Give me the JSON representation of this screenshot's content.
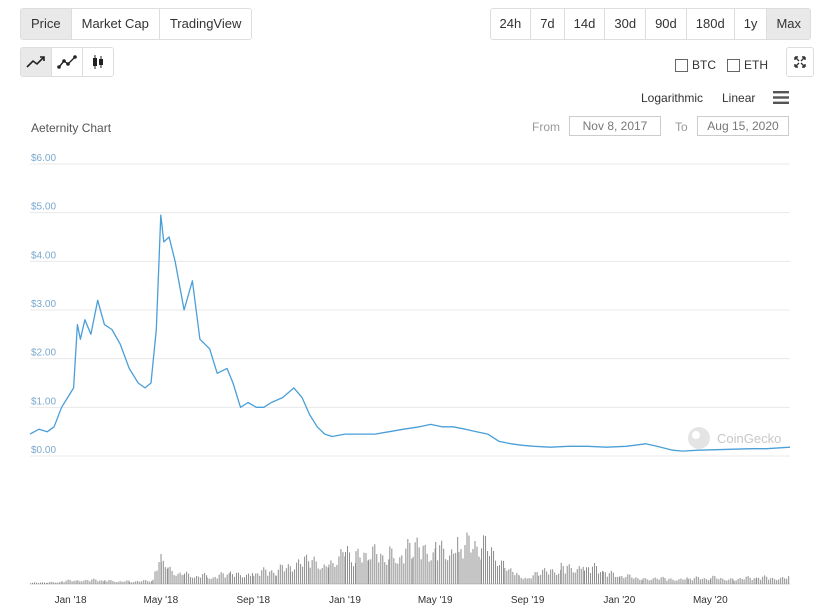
{
  "tabs": [
    "Price",
    "Market Cap",
    "TradingView"
  ],
  "ranges": [
    "24h",
    "7d",
    "14d",
    "30d",
    "90d",
    "180d",
    "1y",
    "Max"
  ],
  "compare": {
    "btc": "BTC",
    "eth": "ETH"
  },
  "scale": {
    "log": "Logarithmic",
    "linear": "Linear"
  },
  "date_range": {
    "from_label": "From",
    "from_value": "Nov 8, 2017",
    "to_label": "To",
    "to_value": "Aug 15, 2020"
  },
  "watermark": "CoinGecko",
  "colors": {
    "line": "#4a9fd8",
    "volume": "#8c8c8c",
    "grid": "#e8e8e8",
    "tick_y": "#7aa9cf",
    "tick_x": "#333333"
  },
  "chart_data": {
    "type": "line",
    "title": "Aeternity Chart",
    "x_unit": "date",
    "ylim": [
      0,
      6
    ],
    "y_ticks": [
      "$0.00",
      "$1.00",
      "$2.00",
      "$3.00",
      "$4.00",
      "$5.00",
      "$6.00"
    ],
    "y_tick_values": [
      0,
      1,
      2,
      3,
      4,
      5,
      6
    ],
    "x_ticks": [
      "Jan '18",
      "May '18",
      "Sep '18",
      "Jan '19",
      "May '19",
      "Sep '19",
      "Jan '20",
      "May '20"
    ],
    "x_tick_dates": [
      "2018-01-01",
      "2018-05-01",
      "2018-09-01",
      "2019-01-01",
      "2019-05-01",
      "2019-09-01",
      "2020-01-01",
      "2020-05-01"
    ],
    "xlim": [
      "2017-11-08",
      "2020-08-15"
    ],
    "series": [
      {
        "x": [
          "2017-11-08",
          "2017-11-20",
          "2017-12-01",
          "2017-12-10",
          "2017-12-20",
          "2017-12-28",
          "2018-01-05",
          "2018-01-10",
          "2018-01-14",
          "2018-01-20",
          "2018-01-28",
          "2018-02-06",
          "2018-02-15",
          "2018-02-25",
          "2018-03-08",
          "2018-03-20",
          "2018-04-01",
          "2018-04-10",
          "2018-04-18",
          "2018-04-25",
          "2018-05-01",
          "2018-05-05",
          "2018-05-12",
          "2018-05-20",
          "2018-06-01",
          "2018-06-12",
          "2018-06-22",
          "2018-07-05",
          "2018-07-15",
          "2018-07-28",
          "2018-08-05",
          "2018-08-15",
          "2018-08-25",
          "2018-09-05",
          "2018-09-15",
          "2018-09-25",
          "2018-10-10",
          "2018-10-25",
          "2018-11-05",
          "2018-11-15",
          "2018-11-25",
          "2018-12-05",
          "2018-12-15",
          "2019-01-01",
          "2019-01-20",
          "2019-02-10",
          "2019-03-01",
          "2019-03-20",
          "2019-04-10",
          "2019-04-25",
          "2019-05-10",
          "2019-05-25",
          "2019-06-10",
          "2019-06-25",
          "2019-07-10",
          "2019-07-25",
          "2019-08-10",
          "2019-08-25",
          "2019-09-10",
          "2019-10-01",
          "2019-10-25",
          "2019-11-20",
          "2019-12-15",
          "2020-01-10",
          "2020-02-05",
          "2020-02-20",
          "2020-03-12",
          "2020-03-25",
          "2020-04-15",
          "2020-05-10",
          "2020-06-01",
          "2020-06-25",
          "2020-07-15",
          "2020-08-15"
        ],
        "y": [
          0.45,
          0.55,
          0.5,
          0.6,
          1.0,
          1.2,
          1.4,
          2.7,
          2.4,
          2.8,
          2.5,
          3.2,
          2.7,
          2.6,
          2.3,
          1.8,
          1.5,
          1.4,
          1.5,
          2.6,
          4.95,
          4.4,
          4.5,
          4.0,
          3.0,
          3.6,
          2.4,
          2.2,
          1.7,
          1.8,
          1.5,
          1.0,
          1.1,
          1.0,
          1.0,
          1.1,
          1.2,
          1.4,
          1.2,
          0.85,
          0.6,
          0.45,
          0.4,
          0.45,
          0.45,
          0.45,
          0.5,
          0.55,
          0.6,
          0.65,
          0.6,
          0.6,
          0.55,
          0.5,
          0.45,
          0.3,
          0.25,
          0.22,
          0.2,
          0.18,
          0.2,
          0.2,
          0.18,
          0.2,
          0.25,
          0.2,
          0.12,
          0.1,
          0.12,
          0.13,
          0.14,
          0.15,
          0.15,
          0.18
        ]
      }
    ],
    "volume": {
      "x": [
        "2017-11-08",
        "2017-12-01",
        "2017-12-20",
        "2018-01-10",
        "2018-02-15",
        "2018-03-20",
        "2018-04-20",
        "2018-05-01",
        "2018-05-10",
        "2018-06-01",
        "2018-07-01",
        "2018-08-01",
        "2018-09-01",
        "2018-10-01",
        "2018-10-20",
        "2018-11-15",
        "2018-12-10",
        "2019-01-01",
        "2019-01-15",
        "2019-02-01",
        "2019-03-01",
        "2019-04-01",
        "2019-05-01",
        "2019-06-01",
        "2019-07-01",
        "2019-08-01",
        "2019-08-20",
        "2019-09-15",
        "2019-10-15",
        "2019-11-15",
        "2019-12-10",
        "2020-01-01",
        "2020-02-01",
        "2020-03-01",
        "2020-04-01",
        "2020-05-01",
        "2020-06-01",
        "2020-07-01",
        "2020-08-15"
      ],
      "values": [
        0.02,
        0.03,
        0.05,
        0.08,
        0.07,
        0.05,
        0.06,
        0.65,
        0.3,
        0.2,
        0.15,
        0.18,
        0.22,
        0.25,
        0.35,
        0.45,
        0.4,
        0.7,
        0.5,
        0.55,
        0.6,
        0.65,
        0.7,
        0.72,
        0.75,
        0.45,
        0.12,
        0.2,
        0.3,
        0.38,
        0.22,
        0.15,
        0.12,
        0.1,
        0.1,
        0.12,
        0.1,
        0.12,
        0.12
      ]
    }
  }
}
